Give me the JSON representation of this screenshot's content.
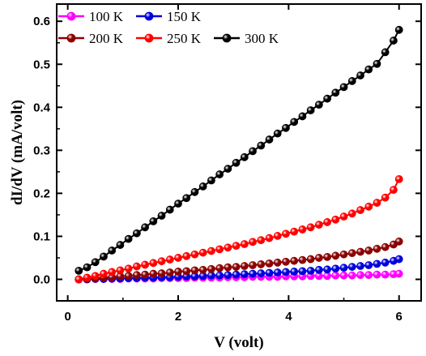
{
  "chart_data": {
    "type": "line",
    "xlabel": "V (volt)",
    "ylabel": "dI/dV (mA/volt)",
    "xlim": [
      -0.2,
      6.4
    ],
    "ylim": [
      -0.05,
      0.64
    ],
    "x_ticks": [
      0,
      2,
      4,
      6
    ],
    "y_ticks": [
      0.0,
      0.1,
      0.2,
      0.3,
      0.4,
      0.5,
      0.6
    ],
    "x_tick_labels": [
      "0",
      "2",
      "4",
      "6"
    ],
    "y_tick_labels": [
      "0.0",
      "0.1",
      "0.2",
      "0.3",
      "0.4",
      "0.5",
      "0.6"
    ],
    "grid": false,
    "legend_placement": "top-left",
    "x": [
      0.2,
      0.35,
      0.5,
      0.65,
      0.8,
      0.95,
      1.1,
      1.25,
      1.4,
      1.55,
      1.7,
      1.85,
      2.0,
      2.15,
      2.3,
      2.45,
      2.6,
      2.75,
      2.9,
      3.05,
      3.2,
      3.35,
      3.5,
      3.65,
      3.8,
      3.95,
      4.1,
      4.25,
      4.4,
      4.55,
      4.7,
      4.85,
      5.0,
      5.15,
      5.3,
      5.45,
      5.6,
      5.75,
      5.9,
      6.0
    ],
    "series": [
      {
        "name": "100 K",
        "color": "#ff00ff",
        "values": [
          0.0,
          0.0,
          0.001,
          0.001,
          0.001,
          0.001,
          0.002,
          0.002,
          0.002,
          0.002,
          0.003,
          0.003,
          0.003,
          0.003,
          0.004,
          0.004,
          0.004,
          0.004,
          0.005,
          0.005,
          0.005,
          0.006,
          0.006,
          0.006,
          0.006,
          0.007,
          0.007,
          0.007,
          0.008,
          0.008,
          0.008,
          0.009,
          0.009,
          0.009,
          0.01,
          0.01,
          0.011,
          0.011,
          0.012,
          0.013
        ]
      },
      {
        "name": "150 K",
        "color": "#0000dd",
        "values": [
          0.0,
          0.0,
          0.001,
          0.001,
          0.002,
          0.002,
          0.003,
          0.003,
          0.004,
          0.004,
          0.005,
          0.005,
          0.006,
          0.007,
          0.007,
          0.008,
          0.009,
          0.009,
          0.01,
          0.011,
          0.012,
          0.013,
          0.014,
          0.015,
          0.016,
          0.017,
          0.018,
          0.019,
          0.02,
          0.022,
          0.023,
          0.025,
          0.027,
          0.029,
          0.031,
          0.033,
          0.036,
          0.039,
          0.043,
          0.047
        ]
      },
      {
        "name": "200 K",
        "color": "#8b0000",
        "values": [
          0.0,
          0.001,
          0.002,
          0.004,
          0.005,
          0.007,
          0.008,
          0.01,
          0.011,
          0.013,
          0.014,
          0.016,
          0.018,
          0.019,
          0.021,
          0.022,
          0.024,
          0.026,
          0.028,
          0.029,
          0.031,
          0.033,
          0.035,
          0.037,
          0.039,
          0.041,
          0.043,
          0.045,
          0.047,
          0.05,
          0.052,
          0.055,
          0.058,
          0.061,
          0.064,
          0.067,
          0.071,
          0.075,
          0.081,
          0.088
        ]
      },
      {
        "name": "250 K",
        "color": "#ff0000",
        "values": [
          0.0,
          0.004,
          0.008,
          0.013,
          0.017,
          0.021,
          0.025,
          0.03,
          0.034,
          0.038,
          0.042,
          0.046,
          0.05,
          0.054,
          0.058,
          0.062,
          0.066,
          0.07,
          0.074,
          0.078,
          0.082,
          0.087,
          0.091,
          0.096,
          0.101,
          0.106,
          0.111,
          0.116,
          0.121,
          0.127,
          0.133,
          0.139,
          0.146,
          0.153,
          0.161,
          0.169,
          0.178,
          0.19,
          0.208,
          0.233
        ]
      },
      {
        "name": "300 K",
        "color": "#000000",
        "values": [
          0.02,
          0.028,
          0.04,
          0.053,
          0.067,
          0.08,
          0.094,
          0.107,
          0.121,
          0.135,
          0.148,
          0.162,
          0.176,
          0.189,
          0.203,
          0.216,
          0.23,
          0.244,
          0.257,
          0.271,
          0.284,
          0.298,
          0.311,
          0.325,
          0.339,
          0.352,
          0.366,
          0.379,
          0.393,
          0.406,
          0.42,
          0.434,
          0.447,
          0.461,
          0.474,
          0.488,
          0.501,
          0.528,
          0.555,
          0.58
        ]
      }
    ]
  }
}
